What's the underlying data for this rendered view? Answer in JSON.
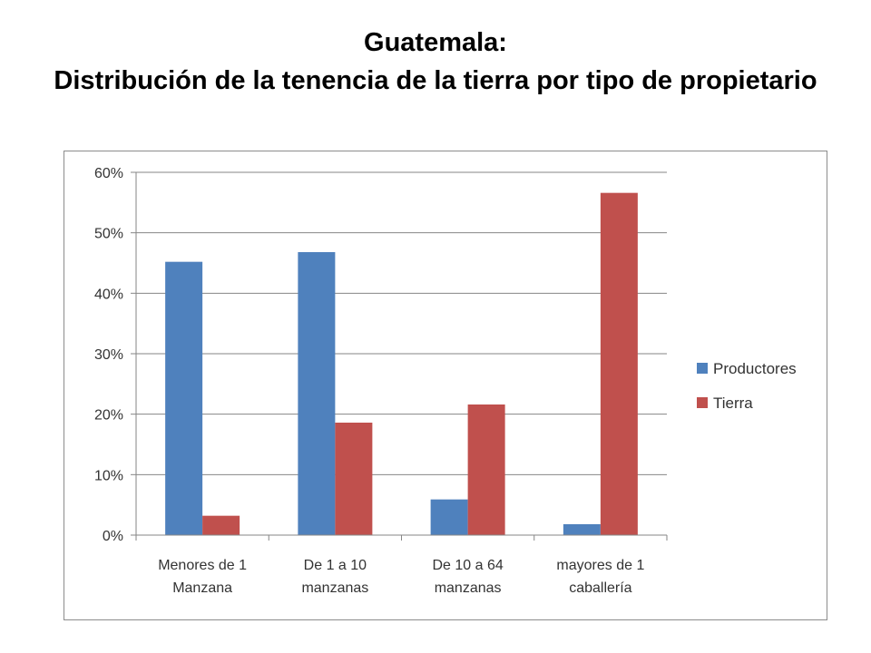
{
  "chart_data": {
    "type": "bar",
    "title_line1": "Guatemala:",
    "title_line2": "Distribución de la tenencia de la tierra por tipo de propietario",
    "categories": [
      [
        "Menores de 1",
        "Manzana"
      ],
      [
        "De 1 a 10",
        "manzanas"
      ],
      [
        "De 10 a 64",
        "manzanas"
      ],
      [
        "mayores de 1",
        "caballería"
      ]
    ],
    "series": [
      {
        "name": "Productores",
        "color": "#4f81bd",
        "values": [
          45.2,
          46.8,
          5.9,
          1.8
        ]
      },
      {
        "name": "Tierra",
        "color": "#c0504d",
        "values": [
          3.2,
          18.6,
          21.6,
          56.6
        ]
      }
    ],
    "ylim": [
      0,
      60
    ],
    "yticks": [
      "0%",
      "10%",
      "20%",
      "30%",
      "40%",
      "50%",
      "60%"
    ],
    "ytick_values": [
      0,
      10,
      20,
      30,
      40,
      50,
      60
    ],
    "grid": true,
    "legend": "right",
    "xlabel": "",
    "ylabel": ""
  }
}
